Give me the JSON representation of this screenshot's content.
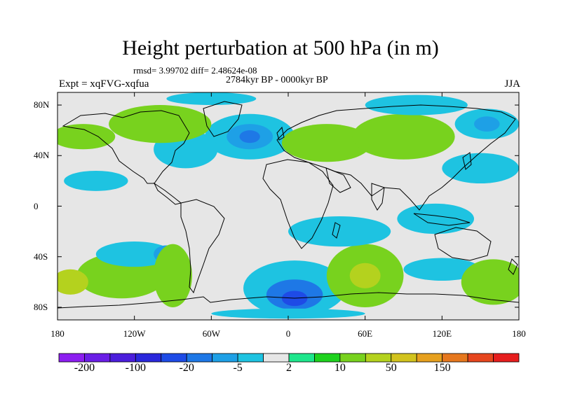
{
  "title": "Height perturbation at 500 hPa (in m)",
  "stats_line": "rmsd= 3.99702 diff= 2.48624e-08",
  "period": "2784kyr BP - 0000kyr BP",
  "experiment": "Expt = xqFVG-xqfua",
  "season": "JJA",
  "map": {
    "lat_labels": [
      {
        "lat": 80,
        "text": "80N"
      },
      {
        "lat": 40,
        "text": "40N"
      },
      {
        "lat": 0,
        "text": "0"
      },
      {
        "lat": -40,
        "text": "40S"
      },
      {
        "lat": -80,
        "text": "80S"
      }
    ],
    "lon_labels": [
      {
        "lon": -180,
        "text": "180"
      },
      {
        "lon": -120,
        "text": "120W"
      },
      {
        "lon": -60,
        "text": "60W"
      },
      {
        "lon": 0,
        "text": "0"
      },
      {
        "lon": 60,
        "text": "60E"
      },
      {
        "lon": 120,
        "text": "120E"
      },
      {
        "lon": 180,
        "text": "180"
      }
    ],
    "lat_range": [
      -90,
      90
    ],
    "lon_range": [
      -180,
      180
    ]
  },
  "colorbar": {
    "colors": [
      "#8c1ef0",
      "#6a1ee6",
      "#4b1edc",
      "#2a28dc",
      "#1e4be6",
      "#1e78e6",
      "#1ea0e6",
      "#1ec3e1",
      "#e6e6e6",
      "#1ee68c",
      "#1ed21e",
      "#78d21e",
      "#b4d21e",
      "#d2c31e",
      "#e6a01e",
      "#e6781e",
      "#e6461e",
      "#e61e1e"
    ],
    "labels": [
      {
        "boundary": 1,
        "text": "-200"
      },
      {
        "boundary": 3,
        "text": "-100"
      },
      {
        "boundary": 5,
        "text": "-20"
      },
      {
        "boundary": 7,
        "text": "-5"
      },
      {
        "boundary": 9,
        "text": "2"
      },
      {
        "boundary": 11,
        "text": "10"
      },
      {
        "boundary": 13,
        "text": "50"
      },
      {
        "boundary": 15,
        "text": "150"
      }
    ]
  },
  "field_blobs": [
    {
      "lon": -130,
      "lat": -55,
      "level": 11,
      "rx": 35,
      "ry": 18
    },
    {
      "lon": -170,
      "lat": -60,
      "level": 12,
      "rx": 14,
      "ry": 10
    },
    {
      "lon": -120,
      "lat": -38,
      "level": 7,
      "rx": 30,
      "ry": 10
    },
    {
      "lon": -95,
      "lat": -38,
      "level": 6,
      "rx": 10,
      "ry": 7
    },
    {
      "lon": -90,
      "lat": -55,
      "level": 11,
      "rx": 15,
      "ry": 25
    },
    {
      "lon": 5,
      "lat": -65,
      "level": 7,
      "rx": 40,
      "ry": 22
    },
    {
      "lon": 5,
      "lat": -70,
      "level": 5,
      "rx": 22,
      "ry": 12
    },
    {
      "lon": 5,
      "lat": -73,
      "level": 4,
      "rx": 10,
      "ry": 6
    },
    {
      "lon": 60,
      "lat": -55,
      "level": 11,
      "rx": 30,
      "ry": 25
    },
    {
      "lon": 60,
      "lat": -55,
      "level": 12,
      "rx": 12,
      "ry": 10
    },
    {
      "lon": 120,
      "lat": -50,
      "level": 7,
      "rx": 30,
      "ry": 9
    },
    {
      "lon": 160,
      "lat": -60,
      "level": 11,
      "rx": 25,
      "ry": 18
    },
    {
      "lon": 40,
      "lat": -20,
      "level": 7,
      "rx": 40,
      "ry": 12
    },
    {
      "lon": 115,
      "lat": -10,
      "level": 7,
      "rx": 30,
      "ry": 12
    },
    {
      "lon": -30,
      "lat": 55,
      "level": 7,
      "rx": 35,
      "ry": 18
    },
    {
      "lon": -30,
      "lat": 55,
      "level": 6,
      "rx": 18,
      "ry": 10
    },
    {
      "lon": -30,
      "lat": 55,
      "level": 5,
      "rx": 8,
      "ry": 5
    },
    {
      "lon": -80,
      "lat": 45,
      "level": 7,
      "rx": 25,
      "ry": 15
    },
    {
      "lon": -100,
      "lat": 65,
      "level": 11,
      "rx": 40,
      "ry": 15
    },
    {
      "lon": -160,
      "lat": 55,
      "level": 11,
      "rx": 25,
      "ry": 10
    },
    {
      "lon": 30,
      "lat": 50,
      "level": 11,
      "rx": 35,
      "ry": 15
    },
    {
      "lon": 90,
      "lat": 55,
      "level": 11,
      "rx": 40,
      "ry": 18
    },
    {
      "lon": 155,
      "lat": 65,
      "level": 7,
      "rx": 25,
      "ry": 12
    },
    {
      "lon": 155,
      "lat": 65,
      "level": 6,
      "rx": 10,
      "ry": 6
    },
    {
      "lon": 100,
      "lat": 80,
      "level": 7,
      "rx": 40,
      "ry": 8
    },
    {
      "lon": -60,
      "lat": 85,
      "level": 7,
      "rx": 35,
      "ry": 5
    },
    {
      "lon": 150,
      "lat": 30,
      "level": 7,
      "rx": 30,
      "ry": 12
    },
    {
      "lon": -150,
      "lat": 20,
      "level": 7,
      "rx": 25,
      "ry": 8
    },
    {
      "lon": 0,
      "lat": -85,
      "level": 7,
      "rx": 60,
      "ry": 4
    }
  ]
}
